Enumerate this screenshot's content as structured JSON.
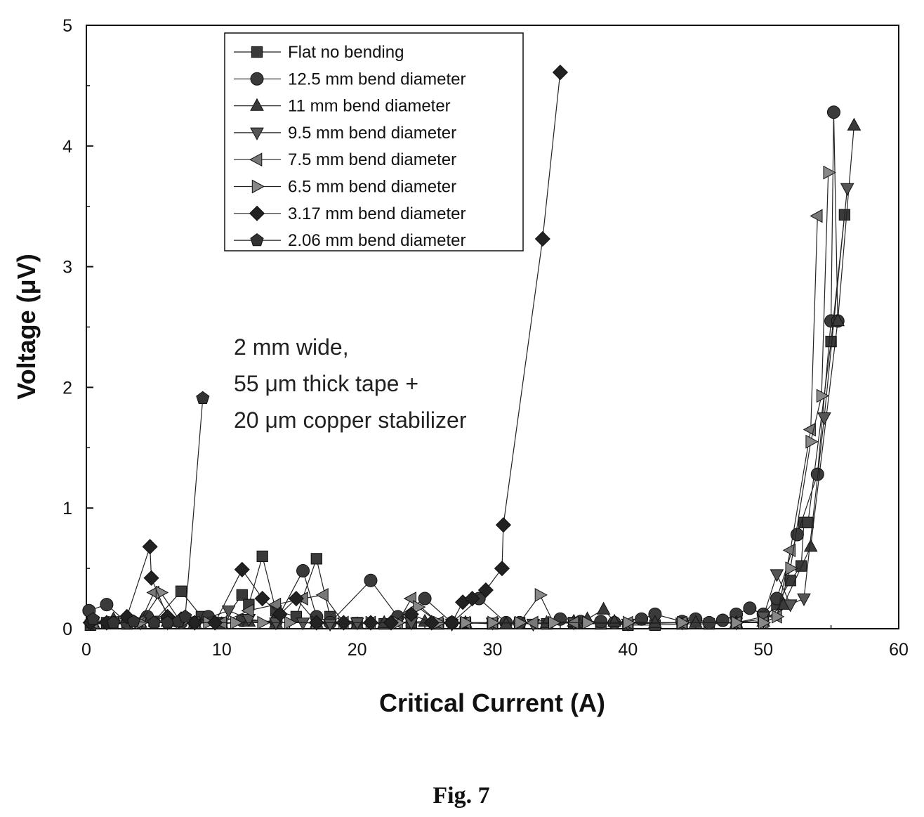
{
  "chart_data": {
    "type": "line",
    "title": "",
    "xlabel": "Critical Current (A)",
    "ylabel": "Voltage (μV)",
    "xlim": [
      0,
      60
    ],
    "ylim": [
      0,
      5
    ],
    "xticks": [
      0,
      10,
      20,
      30,
      40,
      50,
      60
    ],
    "yticks": [
      0,
      1,
      2,
      3,
      4,
      5
    ],
    "grid": false,
    "legend_position": "top-left",
    "annotation": [
      "2 mm wide,",
      "55 μm thick tape +",
      "20 μm copper stabilizer"
    ],
    "series": [
      {
        "name": "Flat no bending",
        "marker": "square",
        "color": "#3a3a3a",
        "x": [
          0.3,
          1.5,
          3.0,
          5.0,
          7.0,
          8.5,
          10.0,
          11.5,
          12.0,
          13.0,
          14.0,
          15.5,
          17.0,
          18.0,
          20.0,
          22.0,
          24.0,
          26.0,
          28.0,
          30.0,
          32.0,
          34.0,
          36.0,
          38.0,
          40.0,
          42.0,
          44.0,
          46.0,
          48.0,
          50.0,
          51.0,
          52.0,
          52.8,
          53.0,
          53.3,
          55.0,
          56.0
        ],
        "y": [
          0.03,
          0.05,
          0.04,
          0.06,
          0.31,
          0.1,
          0.05,
          0.28,
          0.2,
          0.6,
          0.15,
          0.1,
          0.58,
          0.1,
          0.05,
          0.04,
          0.05,
          0.04,
          0.05,
          0.04,
          0.05,
          0.04,
          0.05,
          0.04,
          0.03,
          0.03,
          0.04,
          0.04,
          0.05,
          0.08,
          0.2,
          0.4,
          0.52,
          0.88,
          0.88,
          2.38,
          3.43
        ]
      },
      {
        "name": "12.5 mm bend diameter",
        "marker": "circle",
        "color": "#3a3a3a",
        "x": [
          0.2,
          1.5,
          3.0,
          4.5,
          6.0,
          7.0,
          8.0,
          9.0,
          11.5,
          14.0,
          16.0,
          17.0,
          18.0,
          21.0,
          23.0,
          25.0,
          27.0,
          29.0,
          31.0,
          32.0,
          35.0,
          36.5,
          38.0,
          39.0,
          41.0,
          42.0,
          44.0,
          45.0,
          46.0,
          47.0,
          48.0,
          49.0,
          50.0,
          51.0,
          52.5,
          54.0,
          55.0,
          55.2,
          55.5
        ],
        "y": [
          0.15,
          0.2,
          0.05,
          0.1,
          0.08,
          0.05,
          0.05,
          0.1,
          0.07,
          0.06,
          0.48,
          0.1,
          0.05,
          0.4,
          0.1,
          0.25,
          0.05,
          0.25,
          0.05,
          0.05,
          0.08,
          0.06,
          0.06,
          0.05,
          0.08,
          0.12,
          0.06,
          0.08,
          0.05,
          0.07,
          0.12,
          0.17,
          0.12,
          0.25,
          0.78,
          1.28,
          2.55,
          4.28,
          2.55
        ]
      },
      {
        "name": "11 mm bend diameter",
        "marker": "triangle-up",
        "color": "#3a3a3a",
        "x": [
          0.5,
          2.0,
          4.0,
          6.0,
          8.0,
          10.0,
          12.0,
          14.0,
          17.0,
          20.0,
          22.0,
          25.0,
          28.0,
          31.0,
          34.0,
          36.0,
          37.0,
          38.2,
          39.0,
          42.0,
          45.0,
          48.0,
          50.0,
          51.5,
          53.5,
          55.5,
          56.7
        ],
        "y": [
          0.05,
          0.08,
          0.05,
          0.06,
          0.05,
          0.04,
          0.06,
          0.05,
          0.05,
          0.04,
          0.05,
          0.06,
          0.05,
          0.04,
          0.05,
          0.06,
          0.08,
          0.16,
          0.06,
          0.05,
          0.05,
          0.05,
          0.06,
          0.2,
          0.68,
          2.55,
          4.17
        ]
      },
      {
        "name": "9.5 mm bend diameter",
        "marker": "triangle-down",
        "color": "#555555",
        "x": [
          0.5,
          2.0,
          4.0,
          6.0,
          8.0,
          10.5,
          12.0,
          14.0,
          16.0,
          18.0,
          20.0,
          24.0,
          27.0,
          30.0,
          33.0,
          36.0,
          40.0,
          44.0,
          48.0,
          50.0,
          51.0,
          52.0,
          53.0,
          54.5,
          56.2
        ],
        "y": [
          0.05,
          0.06,
          0.05,
          0.05,
          0.05,
          0.15,
          0.08,
          0.05,
          0.05,
          0.04,
          0.05,
          0.05,
          0.04,
          0.05,
          0.04,
          0.05,
          0.04,
          0.05,
          0.05,
          0.1,
          0.45,
          0.2,
          0.25,
          1.75,
          3.65
        ]
      },
      {
        "name": "7.5 mm bend diameter",
        "marker": "triangle-left",
        "color": "#777777",
        "x": [
          0.5,
          2.0,
          4.0,
          5.0,
          6.5,
          8.0,
          10.0,
          12.0,
          14.0,
          16.0,
          17.5,
          19.0,
          21.0,
          23.0,
          24.0,
          26.0,
          28.0,
          30.0,
          33.0,
          36.0,
          40.0,
          44.0,
          48.0,
          50.0,
          51.0,
          52.0,
          53.5,
          54.0
        ],
        "y": [
          0.05,
          0.05,
          0.06,
          0.3,
          0.05,
          0.05,
          0.05,
          0.15,
          0.2,
          0.25,
          0.28,
          0.05,
          0.05,
          0.05,
          0.25,
          0.05,
          0.05,
          0.05,
          0.05,
          0.05,
          0.05,
          0.05,
          0.05,
          0.05,
          0.1,
          0.65,
          1.65,
          3.42
        ]
      },
      {
        "name": "6.5 mm bend diameter",
        "marker": "triangle-right",
        "color": "#888888",
        "x": [
          0.5,
          2.0,
          4.0,
          5.5,
          7.0,
          9.0,
          11.0,
          13.0,
          15.0,
          17.0,
          19.0,
          21.0,
          23.0,
          24.5,
          26.0,
          28.0,
          30.0,
          32.0,
          33.5,
          34.5,
          37.0,
          40.0,
          44.0,
          48.0,
          50.0,
          51.0,
          52.0,
          53.5,
          54.3,
          54.8
        ],
        "y": [
          0.05,
          0.05,
          0.05,
          0.3,
          0.05,
          0.05,
          0.05,
          0.05,
          0.05,
          0.05,
          0.05,
          0.05,
          0.05,
          0.18,
          0.05,
          0.05,
          0.05,
          0.05,
          0.28,
          0.05,
          0.05,
          0.05,
          0.05,
          0.05,
          0.05,
          0.1,
          0.5,
          1.55,
          1.93,
          3.78
        ]
      },
      {
        "name": "3.17 mm bend diameter",
        "marker": "diamond",
        "color": "#222222",
        "x": [
          0.3,
          1.5,
          3.0,
          4.7,
          4.8,
          6.0,
          7.0,
          8.0,
          9.5,
          11.5,
          13.0,
          14.3,
          15.5,
          17.0,
          19.0,
          21.0,
          22.5,
          24.0,
          25.5,
          27.0,
          27.8,
          28.5,
          29.5,
          30.7,
          30.8,
          33.7,
          35.0
        ],
        "y": [
          0.05,
          0.05,
          0.1,
          0.68,
          0.42,
          0.1,
          0.08,
          0.05,
          0.05,
          0.49,
          0.25,
          0.12,
          0.25,
          0.05,
          0.05,
          0.05,
          0.05,
          0.12,
          0.05,
          0.05,
          0.22,
          0.25,
          0.32,
          0.5,
          0.86,
          3.23,
          4.61
        ]
      },
      {
        "name": "2.06  mm bend diameter",
        "marker": "pentagon",
        "color": "#333333",
        "x": [
          0.5,
          2.0,
          3.5,
          5.0,
          6.0,
          6.8,
          7.3,
          8.6
        ],
        "y": [
          0.08,
          0.05,
          0.06,
          0.05,
          0.05,
          0.06,
          0.1,
          1.91
        ]
      }
    ]
  },
  "figure": {
    "caption": "Fig. 7"
  }
}
